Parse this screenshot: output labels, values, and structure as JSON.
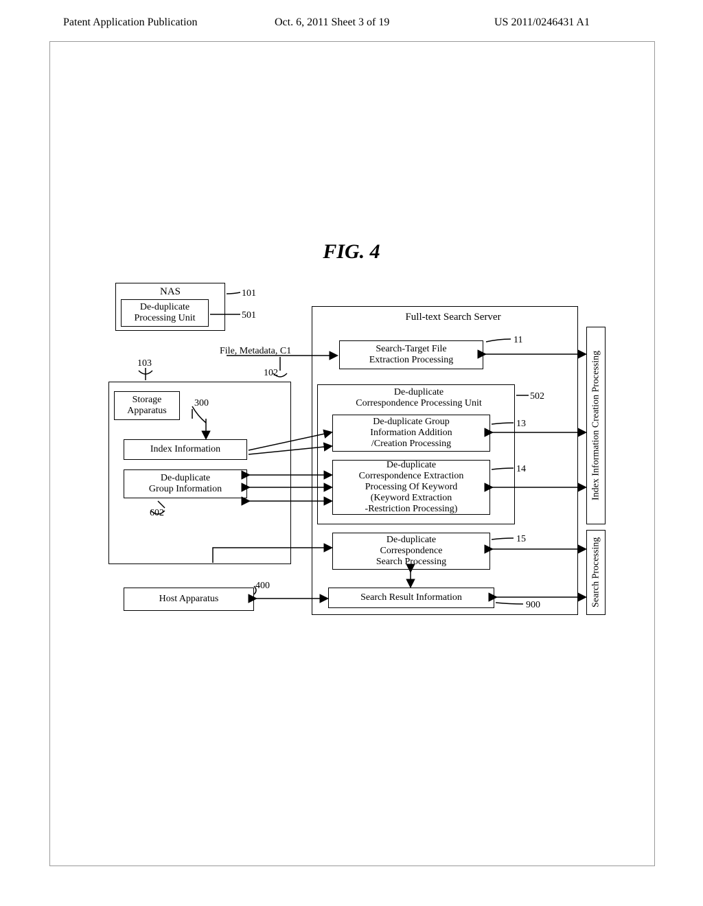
{
  "header": {
    "left": "Patent Application Publication",
    "mid": "Oct. 6, 2011   Sheet 3 of 19",
    "right": "US 2011/0246431 A1"
  },
  "figTitle": "FIG. 4",
  "boxes": {
    "nas": {
      "text": "NAS"
    },
    "dedup": {
      "text": "De-duplicate\nProcessing Unit"
    },
    "storage": {
      "text": "Storage\nApparatus"
    },
    "indexInfo": {
      "text": "Index Information"
    },
    "groupInfo": {
      "text": "De-duplicate\nGroup Information"
    },
    "host": {
      "text": "Host Apparatus"
    },
    "server": {
      "text": "Full-text Search Server"
    },
    "b11": {
      "text": "Search-Target File\nExtraction Processing"
    },
    "b502": {
      "text": "De-duplicate\nCorrespondence Processing Unit"
    },
    "b13": {
      "text": "De-duplicate Group\nInformation Addition\n/Creation Processing"
    },
    "b14": {
      "text": "De-duplicate\nCorrespondence Extraction\nProcessing Of Keyword\n(Keyword Extraction\n-Restriction Processing)"
    },
    "b15": {
      "text": "De-duplicate\nCorrespondence\nSearch Processing"
    },
    "b900": {
      "text": "Search Result Information"
    },
    "vIndex": {
      "text": "Index Information Creation Processing"
    },
    "vSearch": {
      "text": "Search Processing"
    }
  },
  "labels": {
    "fileMeta": "File, Metadata, C1",
    "n101": "101",
    "n501": "501",
    "n103": "103",
    "n102": "102",
    "n300": "300",
    "n602": "602",
    "n400": "400",
    "n11": "11",
    "n502": "502",
    "n13": "13",
    "n14": "14",
    "n15": "15",
    "n900": "900"
  },
  "style": {
    "font": "Times New Roman",
    "bodyFontSize": 14,
    "figTitleFontSize": 30,
    "border": "#000000",
    "bg": "#ffffff"
  }
}
